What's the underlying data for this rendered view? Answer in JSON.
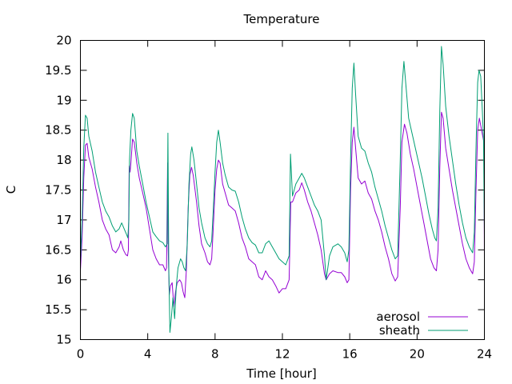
{
  "chart_data": {
    "type": "line",
    "title": "Temperature",
    "xlabel": "Time [hour]",
    "ylabel": "C",
    "xlim": [
      0,
      24
    ],
    "ylim": [
      15,
      20
    ],
    "xticks": [
      0,
      4,
      8,
      12,
      16,
      20,
      24
    ],
    "yticks": [
      15,
      15.5,
      16,
      16.5,
      17,
      17.5,
      18,
      18.5,
      19,
      19.5,
      20
    ],
    "grid": false,
    "legend_position": "bottom-right",
    "series": [
      {
        "name": "aerosol",
        "color": "#9400d3",
        "points": [
          [
            0.0,
            16.15
          ],
          [
            0.1,
            16.7
          ],
          [
            0.2,
            17.7
          ],
          [
            0.3,
            18.25
          ],
          [
            0.4,
            18.28
          ],
          [
            0.5,
            18.05
          ],
          [
            0.7,
            17.85
          ],
          [
            0.9,
            17.55
          ],
          [
            1.1,
            17.3
          ],
          [
            1.3,
            17.0
          ],
          [
            1.5,
            16.85
          ],
          [
            1.7,
            16.75
          ],
          [
            1.9,
            16.5
          ],
          [
            2.1,
            16.45
          ],
          [
            2.3,
            16.55
          ],
          [
            2.4,
            16.65
          ],
          [
            2.55,
            16.5
          ],
          [
            2.7,
            16.42
          ],
          [
            2.8,
            16.4
          ],
          [
            2.85,
            16.5
          ],
          [
            2.9,
            17.9
          ],
          [
            2.95,
            17.8
          ],
          [
            3.0,
            17.95
          ],
          [
            3.1,
            18.35
          ],
          [
            3.2,
            18.3
          ],
          [
            3.35,
            17.95
          ],
          [
            3.5,
            17.7
          ],
          [
            3.7,
            17.45
          ],
          [
            3.9,
            17.2
          ],
          [
            4.1,
            16.85
          ],
          [
            4.3,
            16.5
          ],
          [
            4.5,
            16.35
          ],
          [
            4.7,
            16.25
          ],
          [
            4.9,
            16.25
          ],
          [
            5.05,
            16.15
          ],
          [
            5.12,
            16.2
          ],
          [
            5.18,
            17.95
          ],
          [
            5.22,
            16.5
          ],
          [
            5.28,
            15.75
          ],
          [
            5.35,
            15.9
          ],
          [
            5.45,
            15.95
          ],
          [
            5.55,
            15.55
          ],
          [
            5.65,
            15.8
          ],
          [
            5.75,
            15.95
          ],
          [
            5.9,
            16.0
          ],
          [
            6.0,
            15.95
          ],
          [
            6.1,
            15.8
          ],
          [
            6.2,
            15.7
          ],
          [
            6.3,
            16.2
          ],
          [
            6.4,
            17.2
          ],
          [
            6.5,
            17.75
          ],
          [
            6.6,
            17.88
          ],
          [
            6.7,
            17.75
          ],
          [
            6.9,
            17.3
          ],
          [
            7.05,
            16.9
          ],
          [
            7.2,
            16.6
          ],
          [
            7.4,
            16.45
          ],
          [
            7.55,
            16.3
          ],
          [
            7.7,
            16.25
          ],
          [
            7.8,
            16.35
          ],
          [
            7.9,
            16.9
          ],
          [
            8.0,
            17.5
          ],
          [
            8.1,
            17.85
          ],
          [
            8.2,
            18.0
          ],
          [
            8.3,
            17.95
          ],
          [
            8.45,
            17.6
          ],
          [
            8.6,
            17.45
          ],
          [
            8.8,
            17.25
          ],
          [
            9.0,
            17.2
          ],
          [
            9.2,
            17.15
          ],
          [
            9.4,
            16.95
          ],
          [
            9.6,
            16.7
          ],
          [
            9.8,
            16.55
          ],
          [
            10.0,
            16.35
          ],
          [
            10.2,
            16.3
          ],
          [
            10.4,
            16.25
          ],
          [
            10.6,
            16.05
          ],
          [
            10.8,
            16.0
          ],
          [
            11.0,
            16.15
          ],
          [
            11.2,
            16.05
          ],
          [
            11.4,
            16.0
          ],
          [
            11.6,
            15.9
          ],
          [
            11.8,
            15.78
          ],
          [
            12.0,
            15.85
          ],
          [
            12.2,
            15.85
          ],
          [
            12.4,
            16.0
          ],
          [
            12.5,
            17.3
          ],
          [
            12.6,
            17.3
          ],
          [
            12.8,
            17.45
          ],
          [
            13.0,
            17.5
          ],
          [
            13.15,
            17.62
          ],
          [
            13.3,
            17.5
          ],
          [
            13.5,
            17.3
          ],
          [
            13.7,
            17.15
          ],
          [
            13.9,
            16.95
          ],
          [
            14.1,
            16.75
          ],
          [
            14.3,
            16.5
          ],
          [
            14.5,
            16.1
          ],
          [
            14.6,
            16.0
          ],
          [
            14.8,
            16.1
          ],
          [
            15.0,
            16.15
          ],
          [
            15.3,
            16.12
          ],
          [
            15.5,
            16.12
          ],
          [
            15.7,
            16.05
          ],
          [
            15.85,
            15.95
          ],
          [
            15.95,
            16.0
          ],
          [
            16.05,
            17.5
          ],
          [
            16.15,
            18.3
          ],
          [
            16.25,
            18.55
          ],
          [
            16.35,
            18.2
          ],
          [
            16.5,
            17.7
          ],
          [
            16.7,
            17.6
          ],
          [
            16.9,
            17.65
          ],
          [
            17.1,
            17.45
          ],
          [
            17.3,
            17.35
          ],
          [
            17.5,
            17.15
          ],
          [
            17.7,
            17.0
          ],
          [
            17.9,
            16.8
          ],
          [
            18.1,
            16.55
          ],
          [
            18.3,
            16.35
          ],
          [
            18.5,
            16.1
          ],
          [
            18.7,
            15.98
          ],
          [
            18.85,
            16.05
          ],
          [
            19.0,
            17.2
          ],
          [
            19.1,
            18.3
          ],
          [
            19.25,
            18.6
          ],
          [
            19.4,
            18.45
          ],
          [
            19.6,
            18.1
          ],
          [
            19.8,
            17.85
          ],
          [
            20.0,
            17.55
          ],
          [
            20.2,
            17.25
          ],
          [
            20.4,
            16.95
          ],
          [
            20.6,
            16.65
          ],
          [
            20.8,
            16.35
          ],
          [
            21.0,
            16.2
          ],
          [
            21.15,
            16.15
          ],
          [
            21.25,
            16.5
          ],
          [
            21.35,
            17.85
          ],
          [
            21.45,
            18.8
          ],
          [
            21.55,
            18.7
          ],
          [
            21.7,
            18.2
          ],
          [
            21.9,
            17.85
          ],
          [
            22.1,
            17.5
          ],
          [
            22.3,
            17.2
          ],
          [
            22.5,
            16.9
          ],
          [
            22.7,
            16.6
          ],
          [
            22.9,
            16.35
          ],
          [
            23.1,
            16.2
          ],
          [
            23.3,
            16.1
          ],
          [
            23.4,
            16.3
          ],
          [
            23.5,
            17.5
          ],
          [
            23.6,
            18.5
          ],
          [
            23.7,
            18.7
          ],
          [
            23.8,
            18.55
          ],
          [
            23.9,
            18.4
          ],
          [
            23.97,
            18.3
          ],
          [
            24.0,
            16.35
          ]
        ]
      },
      {
        "name": "sheath",
        "color": "#009e73",
        "points": [
          [
            0.0,
            16.3
          ],
          [
            0.1,
            17.0
          ],
          [
            0.2,
            18.2
          ],
          [
            0.3,
            18.75
          ],
          [
            0.4,
            18.7
          ],
          [
            0.5,
            18.4
          ],
          [
            0.7,
            18.15
          ],
          [
            0.9,
            17.8
          ],
          [
            1.1,
            17.55
          ],
          [
            1.3,
            17.3
          ],
          [
            1.5,
            17.15
          ],
          [
            1.7,
            17.05
          ],
          [
            1.9,
            16.9
          ],
          [
            2.1,
            16.8
          ],
          [
            2.3,
            16.85
          ],
          [
            2.45,
            16.95
          ],
          [
            2.6,
            16.85
          ],
          [
            2.75,
            16.75
          ],
          [
            2.82,
            16.7
          ],
          [
            2.88,
            17.0
          ],
          [
            2.92,
            18.0
          ],
          [
            3.0,
            18.5
          ],
          [
            3.1,
            18.78
          ],
          [
            3.2,
            18.7
          ],
          [
            3.35,
            18.15
          ],
          [
            3.5,
            17.9
          ],
          [
            3.7,
            17.6
          ],
          [
            3.9,
            17.3
          ],
          [
            4.1,
            17.05
          ],
          [
            4.3,
            16.8
          ],
          [
            4.5,
            16.72
          ],
          [
            4.7,
            16.65
          ],
          [
            4.9,
            16.62
          ],
          [
            5.05,
            16.55
          ],
          [
            5.15,
            16.6
          ],
          [
            5.2,
            18.45
          ],
          [
            5.25,
            16.2
          ],
          [
            5.32,
            15.12
          ],
          [
            5.4,
            15.35
          ],
          [
            5.5,
            15.7
          ],
          [
            5.6,
            15.35
          ],
          [
            5.7,
            15.9
          ],
          [
            5.8,
            16.2
          ],
          [
            5.95,
            16.35
          ],
          [
            6.05,
            16.3
          ],
          [
            6.15,
            16.2
          ],
          [
            6.25,
            16.15
          ],
          [
            6.35,
            16.6
          ],
          [
            6.45,
            17.6
          ],
          [
            6.55,
            18.1
          ],
          [
            6.62,
            18.22
          ],
          [
            6.75,
            18.0
          ],
          [
            6.9,
            17.6
          ],
          [
            7.05,
            17.2
          ],
          [
            7.2,
            16.95
          ],
          [
            7.4,
            16.7
          ],
          [
            7.55,
            16.6
          ],
          [
            7.7,
            16.55
          ],
          [
            7.8,
            16.65
          ],
          [
            7.9,
            17.2
          ],
          [
            8.0,
            17.8
          ],
          [
            8.1,
            18.3
          ],
          [
            8.2,
            18.5
          ],
          [
            8.3,
            18.3
          ],
          [
            8.45,
            17.95
          ],
          [
            8.6,
            17.75
          ],
          [
            8.8,
            17.55
          ],
          [
            9.0,
            17.5
          ],
          [
            9.2,
            17.48
          ],
          [
            9.4,
            17.3
          ],
          [
            9.6,
            17.05
          ],
          [
            9.8,
            16.85
          ],
          [
            10.0,
            16.7
          ],
          [
            10.2,
            16.62
          ],
          [
            10.4,
            16.58
          ],
          [
            10.6,
            16.45
          ],
          [
            10.8,
            16.45
          ],
          [
            11.0,
            16.6
          ],
          [
            11.2,
            16.65
          ],
          [
            11.4,
            16.55
          ],
          [
            11.6,
            16.45
          ],
          [
            11.8,
            16.35
          ],
          [
            12.0,
            16.3
          ],
          [
            12.2,
            16.25
          ],
          [
            12.4,
            16.4
          ],
          [
            12.48,
            18.1
          ],
          [
            12.6,
            17.4
          ],
          [
            12.8,
            17.6
          ],
          [
            13.0,
            17.7
          ],
          [
            13.15,
            17.78
          ],
          [
            13.3,
            17.7
          ],
          [
            13.5,
            17.55
          ],
          [
            13.7,
            17.4
          ],
          [
            13.9,
            17.25
          ],
          [
            14.1,
            17.15
          ],
          [
            14.3,
            17.0
          ],
          [
            14.5,
            16.4
          ],
          [
            14.6,
            16.0
          ],
          [
            14.8,
            16.4
          ],
          [
            15.0,
            16.55
          ],
          [
            15.3,
            16.6
          ],
          [
            15.5,
            16.55
          ],
          [
            15.7,
            16.45
          ],
          [
            15.85,
            16.3
          ],
          [
            15.95,
            16.5
          ],
          [
            16.05,
            18.0
          ],
          [
            16.15,
            19.2
          ],
          [
            16.25,
            19.62
          ],
          [
            16.35,
            19.1
          ],
          [
            16.5,
            18.4
          ],
          [
            16.7,
            18.2
          ],
          [
            16.9,
            18.15
          ],
          [
            17.1,
            17.95
          ],
          [
            17.3,
            17.8
          ],
          [
            17.5,
            17.55
          ],
          [
            17.7,
            17.35
          ],
          [
            17.9,
            17.15
          ],
          [
            18.1,
            16.9
          ],
          [
            18.3,
            16.7
          ],
          [
            18.5,
            16.5
          ],
          [
            18.7,
            16.35
          ],
          [
            18.85,
            16.4
          ],
          [
            19.0,
            18.0
          ],
          [
            19.1,
            19.2
          ],
          [
            19.22,
            19.65
          ],
          [
            19.35,
            19.2
          ],
          [
            19.5,
            18.7
          ],
          [
            19.7,
            18.45
          ],
          [
            19.9,
            18.2
          ],
          [
            20.1,
            17.95
          ],
          [
            20.3,
            17.7
          ],
          [
            20.5,
            17.4
          ],
          [
            20.7,
            17.1
          ],
          [
            20.9,
            16.85
          ],
          [
            21.05,
            16.7
          ],
          [
            21.15,
            16.65
          ],
          [
            21.25,
            17.2
          ],
          [
            21.35,
            18.8
          ],
          [
            21.45,
            19.9
          ],
          [
            21.55,
            19.6
          ],
          [
            21.7,
            18.9
          ],
          [
            21.9,
            18.4
          ],
          [
            22.1,
            18.0
          ],
          [
            22.3,
            17.6
          ],
          [
            22.5,
            17.25
          ],
          [
            22.7,
            16.95
          ],
          [
            22.9,
            16.7
          ],
          [
            23.1,
            16.55
          ],
          [
            23.3,
            16.45
          ],
          [
            23.4,
            16.8
          ],
          [
            23.5,
            18.2
          ],
          [
            23.6,
            19.3
          ],
          [
            23.68,
            19.5
          ],
          [
            23.78,
            19.4
          ],
          [
            23.88,
            18.8
          ],
          [
            23.95,
            18.35
          ],
          [
            24.0,
            16.8
          ]
        ]
      }
    ]
  }
}
